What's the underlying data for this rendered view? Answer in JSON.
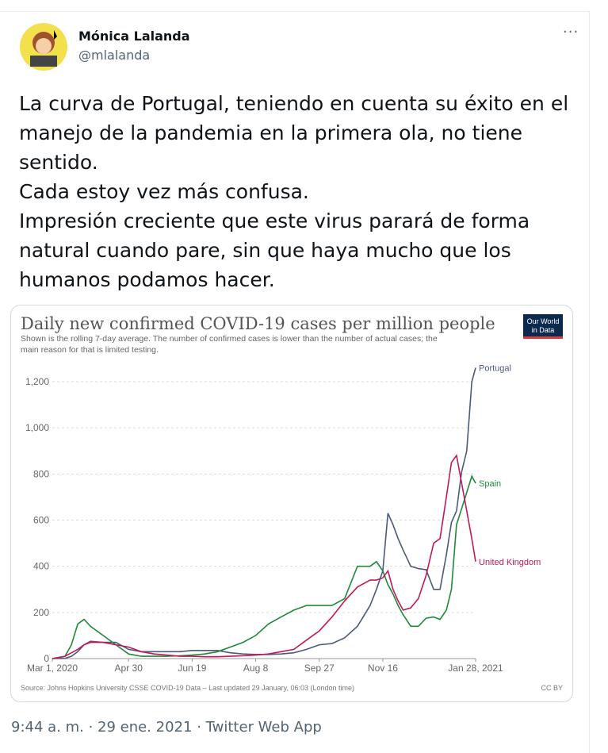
{
  "tweet": {
    "author": {
      "name": "Mónica Lalanda",
      "handle": "@mlalanda"
    },
    "text": [
      "La curva de Portugal, teniendo en cuenta su éxito en el manejo de la pandemia en la primera ola, no tiene sentido.",
      "Cada estoy vez más confusa.",
      "Impresión creciente que este virus parará de forma natural cuando pare, sin que haya mucho que los humanos podamos hacer."
    ],
    "timestamp": "9:44 a. m. · 29 ene. 2021 · Twitter Web App"
  },
  "chart_data": {
    "type": "line",
    "title": "Daily new confirmed COVID-19 cases per million people",
    "subtitle": [
      "Shown is the rolling 7-day average. The number of confirmed cases is lower than the number of actual cases; the",
      "main reason for that is limited testing."
    ],
    "logo": [
      "Our World",
      "in Data"
    ],
    "source": "Source: Johns Hopkins University CSSE COVID-19 Data – Last updated 29 January, 06:03 (London time)",
    "license": "CC BY",
    "x": [
      0,
      10,
      15,
      20,
      25,
      30,
      40,
      50,
      60,
      70,
      80,
      90,
      100,
      110,
      120,
      130,
      140,
      150,
      160,
      170,
      180,
      190,
      200,
      210,
      220,
      230,
      240,
      250,
      255,
      260,
      264,
      268,
      272,
      276,
      282,
      288,
      294,
      300,
      305,
      310,
      314,
      318,
      322,
      326,
      330,
      333
    ],
    "xlim": [
      0,
      333
    ],
    "xticks": [
      {
        "value": 0,
        "label": "Mar 1, 2020"
      },
      {
        "value": 60,
        "label": "Apr 30"
      },
      {
        "value": 110,
        "label": "Jun 19"
      },
      {
        "value": 160,
        "label": "Aug 8"
      },
      {
        "value": 210,
        "label": "Sep 27"
      },
      {
        "value": 260,
        "label": "Nov 16"
      },
      {
        "value": 333,
        "label": "Jan 28, 2021"
      }
    ],
    "ylim": [
      0,
      1250
    ],
    "yticks": [
      0,
      200,
      400,
      600,
      800,
      {
        "value": 1000,
        "label": "1,000"
      },
      {
        "value": 1200,
        "label": "1,200"
      }
    ],
    "grid": true,
    "series": [
      {
        "name": "Portugal",
        "color": "#4c5a78",
        "values": [
          0,
          1,
          10,
          30,
          60,
          75,
          70,
          70,
          40,
          30,
          30,
          30,
          30,
          35,
          35,
          35,
          25,
          20,
          18,
          18,
          20,
          25,
          40,
          60,
          65,
          90,
          140,
          230,
          300,
          380,
          630,
          580,
          520,
          470,
          400,
          390,
          385,
          300,
          300,
          450,
          590,
          640,
          810,
          900,
          1200,
          1260
        ]
      },
      {
        "name": "Spain",
        "color": "#1d8a3a",
        "values": [
          0,
          10,
          60,
          150,
          170,
          140,
          100,
          60,
          20,
          10,
          10,
          10,
          12,
          15,
          20,
          30,
          50,
          70,
          100,
          150,
          180,
          210,
          230,
          230,
          230,
          260,
          400,
          400,
          420,
          380,
          320,
          280,
          230,
          190,
          140,
          140,
          175,
          180,
          170,
          210,
          300,
          580,
          650,
          720,
          790,
          760
        ]
      },
      {
        "name": "United Kingdom",
        "color": "#c2185b",
        "values": [
          0,
          10,
          25,
          40,
          60,
          70,
          70,
          60,
          50,
          30,
          20,
          15,
          10,
          10,
          8,
          8,
          10,
          12,
          15,
          20,
          30,
          40,
          80,
          120,
          180,
          250,
          310,
          340,
          340,
          350,
          380,
          300,
          250,
          210,
          220,
          260,
          360,
          500,
          520,
          700,
          850,
          880,
          760,
          640,
          520,
          420
        ]
      }
    ]
  }
}
